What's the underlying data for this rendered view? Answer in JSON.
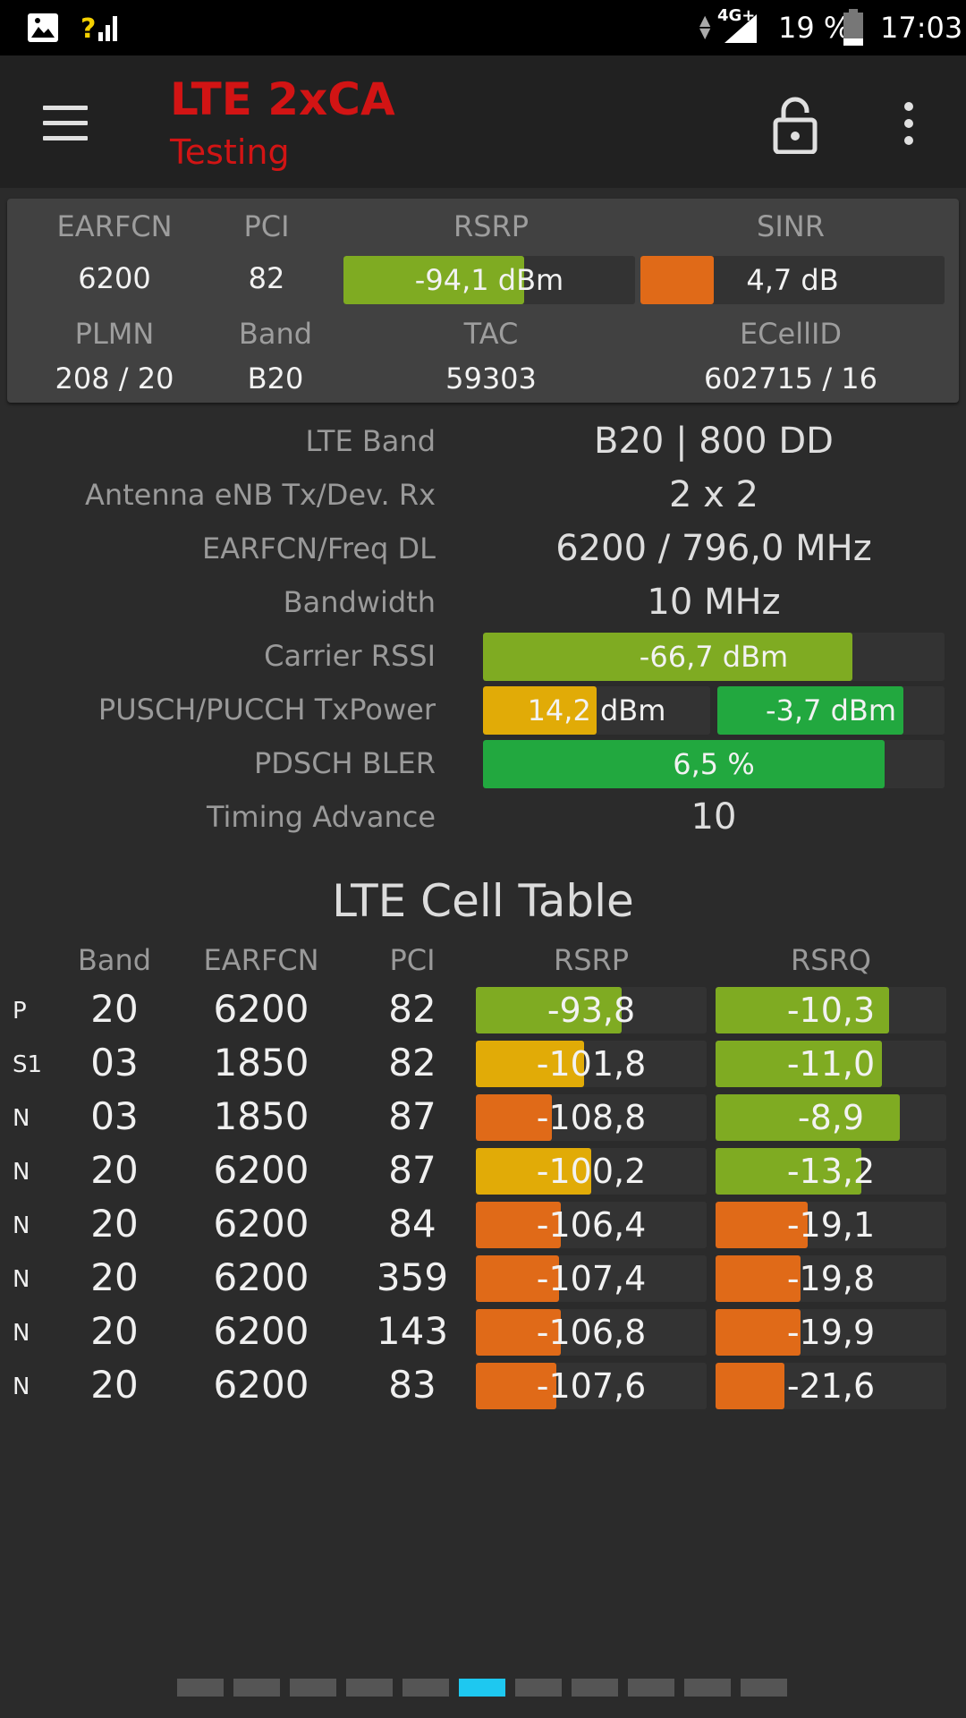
{
  "status_bar": {
    "network_type": "4G+",
    "battery": "19 %",
    "time": "17:03"
  },
  "app_bar": {
    "title": "LTE 2xCA",
    "subtitle": "Testing"
  },
  "summary": {
    "labels": {
      "earfcn": "EARFCN",
      "pci": "PCI",
      "rsrp": "RSRP",
      "sinr": "SINR",
      "plmn": "PLMN",
      "band": "Band",
      "tac": "TAC",
      "ecellid": "ECellID"
    },
    "earfcn": "6200",
    "pci": "82",
    "rsrp": "-94,1 dBm",
    "rsrp_level": 0.62,
    "sinr": "4,7 dB",
    "sinr_level": 0.24,
    "plmn": "208 / 20",
    "band": "B20",
    "tac": "59303",
    "ecellid": "602715 / 16"
  },
  "details": {
    "lte_band_label": "LTE Band",
    "lte_band": "B20 | 800 DD",
    "antenna_label": "Antenna eNB Tx/Dev. Rx",
    "antenna": "2 x 2",
    "earfcn_freq_label": "EARFCN/Freq DL",
    "earfcn_freq": "6200 / 796,0 MHz",
    "bandwidth_label": "Bandwidth",
    "bandwidth": "10 MHz",
    "rssi_label": "Carrier RSSI",
    "rssi": "-66,7 dBm",
    "rssi_level": 0.8,
    "txpower_label": "PUSCH/PUCCH TxPower",
    "pusch": "14,2 dBm",
    "pusch_level": 0.5,
    "pucch": "-3,7 dBm",
    "pucch_level": 0.82,
    "bler_label": "PDSCH BLER",
    "bler": "6,5 %",
    "bler_level": 0.87,
    "ta_label": "Timing Advance",
    "ta": "10"
  },
  "cell_table": {
    "title": "LTE Cell Table",
    "headers": [
      "Band",
      "EARFCN",
      "PCI",
      "RSRP",
      "RSRQ"
    ],
    "rows": [
      {
        "type": "P",
        "band": "20",
        "earfcn": "6200",
        "pci": "82",
        "rsrp": "-93,8",
        "rsrp_level": 0.63,
        "rsrp_color": "#7fab22",
        "rsrq": "-10,3",
        "rsrq_level": 0.75,
        "rsrq_color": "#7fab22"
      },
      {
        "type": "S1",
        "band": "03",
        "earfcn": "1850",
        "pci": "82",
        "rsrp": "-101,8",
        "rsrp_level": 0.47,
        "rsrp_color": "#e1ab07",
        "rsrq": "-11,0",
        "rsrq_level": 0.72,
        "rsrq_color": "#7fab22"
      },
      {
        "type": "N",
        "band": "03",
        "earfcn": "1850",
        "pci": "87",
        "rsrp": "-108,8",
        "rsrp_level": 0.33,
        "rsrp_color": "#e06a18",
        "rsrq": "-8,9",
        "rsrq_level": 0.8,
        "rsrq_color": "#7fab22"
      },
      {
        "type": "N",
        "band": "20",
        "earfcn": "6200",
        "pci": "87",
        "rsrp": "-100,2",
        "rsrp_level": 0.5,
        "rsrp_color": "#e1ab07",
        "rsrq": "-13,2",
        "rsrq_level": 0.63,
        "rsrq_color": "#7fab22"
      },
      {
        "type": "N",
        "band": "20",
        "earfcn": "6200",
        "pci": "84",
        "rsrp": "-106,4",
        "rsrp_level": 0.37,
        "rsrp_color": "#e06a18",
        "rsrq": "-19,1",
        "rsrq_level": 0.4,
        "rsrq_color": "#e06a18"
      },
      {
        "type": "N",
        "band": "20",
        "earfcn": "6200",
        "pci": "359",
        "rsrp": "-107,4",
        "rsrp_level": 0.36,
        "rsrp_color": "#e06a18",
        "rsrq": "-19,8",
        "rsrq_level": 0.37,
        "rsrq_color": "#e06a18"
      },
      {
        "type": "N",
        "band": "20",
        "earfcn": "6200",
        "pci": "143",
        "rsrp": "-106,8",
        "rsrp_level": 0.37,
        "rsrp_color": "#e06a18",
        "rsrq": "-19,9",
        "rsrq_level": 0.37,
        "rsrq_color": "#e06a18"
      },
      {
        "type": "N",
        "band": "20",
        "earfcn": "6200",
        "pci": "83",
        "rsrp": "-107,6",
        "rsrp_level": 0.35,
        "rsrp_color": "#e06a18",
        "rsrq": "-21,6",
        "rsrq_level": 0.3,
        "rsrq_color": "#e06a18"
      }
    ]
  },
  "pager": {
    "count": 11,
    "active": 5
  },
  "colors": {
    "green": "#7fab22",
    "bright_green": "#22a83f",
    "yellow": "#e1ab07",
    "orange": "#e06a18",
    "accent": "#d21414",
    "pager_active": "#1ec8f0"
  }
}
